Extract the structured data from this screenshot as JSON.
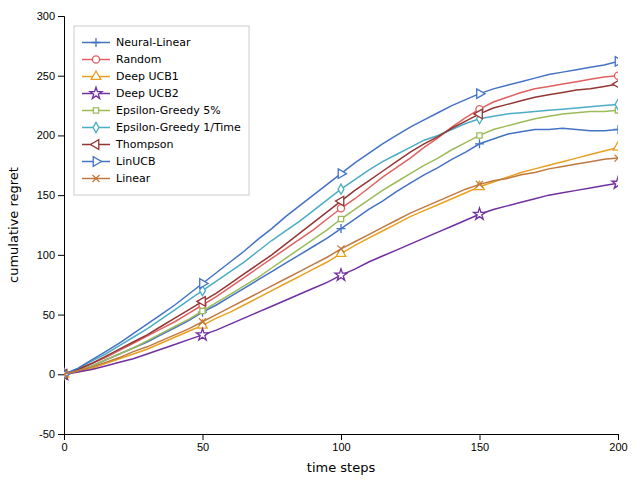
{
  "chart_data": {
    "type": "line",
    "title": "",
    "xlabel": "time steps",
    "ylabel": "cumulative regret",
    "x": [
      0,
      5,
      10,
      15,
      20,
      25,
      30,
      35,
      40,
      45,
      50,
      55,
      60,
      65,
      70,
      75,
      80,
      85,
      90,
      95,
      100,
      105,
      110,
      115,
      120,
      125,
      130,
      135,
      140,
      145,
      150,
      155,
      160,
      165,
      170,
      175,
      180,
      185,
      190,
      195,
      200
    ],
    "xlim": [
      0,
      200
    ],
    "ylim": [
      -50,
      300
    ],
    "xticks": [
      0,
      50,
      100,
      150,
      200
    ],
    "yticks": [
      -50,
      0,
      50,
      100,
      150,
      200,
      250,
      300
    ],
    "grid": false,
    "legend": "upper left",
    "series": [
      {
        "name": "Neural-Linear",
        "color": "#4472C4",
        "marker": "plus",
        "values": [
          0,
          3,
          7,
          12,
          17,
          22,
          27,
          33,
          39,
          45,
          52,
          58,
          65,
          72,
          79,
          86,
          93,
          100,
          107,
          114,
          122,
          130,
          138,
          145,
          153,
          160,
          167,
          173,
          180,
          186,
          193,
          197,
          201,
          203,
          205,
          205,
          206,
          205,
          204,
          204,
          205
        ]
      },
      {
        "name": "Random",
        "color": "#E06060",
        "marker": "circle",
        "values": [
          0,
          4,
          9,
          14,
          20,
          26,
          32,
          38,
          44,
          51,
          58,
          65,
          73,
          81,
          89,
          97,
          105,
          113,
          121,
          130,
          139,
          147,
          156,
          165,
          173,
          181,
          190,
          198,
          207,
          215,
          222,
          228,
          232,
          236,
          239,
          241,
          243,
          245,
          247,
          249,
          250
        ]
      },
      {
        "name": "Deep UCB1",
        "color": "#E8A020",
        "marker": "triangle-up",
        "values": [
          0,
          2,
          5,
          9,
          13,
          17,
          21,
          26,
          31,
          36,
          41,
          47,
          52,
          58,
          64,
          70,
          76,
          82,
          88,
          94,
          101,
          108,
          114,
          120,
          126,
          132,
          137,
          142,
          147,
          152,
          157,
          161,
          165,
          169,
          172,
          175,
          178,
          181,
          184,
          187,
          190
        ]
      },
      {
        "name": "Deep UCB2",
        "color": "#7030A0",
        "marker": "star",
        "values": [
          0,
          2,
          4,
          7,
          10,
          13,
          17,
          21,
          25,
          29,
          33,
          37,
          42,
          47,
          52,
          57,
          62,
          67,
          72,
          77,
          83,
          88,
          94,
          99,
          104,
          109,
          114,
          119,
          124,
          129,
          134,
          138,
          141,
          144,
          147,
          150,
          152,
          154,
          156,
          158,
          160
        ]
      },
      {
        "name": "Epsilon-Greedy 5%",
        "color": "#9BBB59",
        "marker": "square",
        "values": [
          0,
          3,
          7,
          12,
          17,
          22,
          28,
          34,
          40,
          46,
          53,
          60,
          67,
          74,
          81,
          89,
          97,
          105,
          113,
          121,
          130,
          138,
          146,
          154,
          161,
          168,
          175,
          181,
          188,
          194,
          200,
          205,
          208,
          211,
          214,
          216,
          218,
          219,
          220,
          220,
          221
        ]
      },
      {
        "name": "Epsilon-Greedy 1/Time",
        "color": "#4BACC6",
        "marker": "diamond",
        "values": [
          0,
          5,
          11,
          17,
          24,
          31,
          38,
          46,
          54,
          62,
          70,
          78,
          86,
          94,
          103,
          112,
          120,
          128,
          137,
          146,
          155,
          163,
          171,
          178,
          184,
          190,
          196,
          200,
          205,
          210,
          214,
          216,
          218,
          219,
          220,
          221,
          222,
          223,
          224,
          225,
          226
        ]
      },
      {
        "name": "Thompson",
        "color": "#943634",
        "marker": "triangle-left",
        "values": [
          0,
          4,
          9,
          15,
          21,
          27,
          33,
          40,
          47,
          54,
          61,
          68,
          76,
          84,
          92,
          100,
          109,
          118,
          127,
          136,
          145,
          154,
          162,
          170,
          178,
          186,
          193,
          199,
          206,
          212,
          218,
          223,
          226,
          229,
          232,
          234,
          236,
          238,
          239,
          241,
          243
        ]
      },
      {
        "name": "LinUCB",
        "color": "#4472C4",
        "marker": "triangle-right",
        "values": [
          0,
          5,
          12,
          19,
          26,
          34,
          42,
          50,
          58,
          67,
          76,
          85,
          94,
          103,
          113,
          122,
          132,
          141,
          150,
          159,
          168,
          177,
          185,
          193,
          200,
          207,
          213,
          219,
          225,
          230,
          235,
          239,
          242,
          245,
          248,
          251,
          253,
          255,
          257,
          259,
          262
        ]
      },
      {
        "name": "Linear",
        "color": "#C07840",
        "marker": "x",
        "values": [
          0,
          3,
          6,
          10,
          14,
          19,
          23,
          28,
          33,
          38,
          44,
          50,
          56,
          62,
          68,
          74,
          80,
          86,
          92,
          98,
          105,
          111,
          117,
          123,
          129,
          135,
          140,
          145,
          150,
          155,
          159,
          162,
          164,
          167,
          169,
          172,
          174,
          176,
          178,
          180,
          181
        ]
      }
    ]
  }
}
